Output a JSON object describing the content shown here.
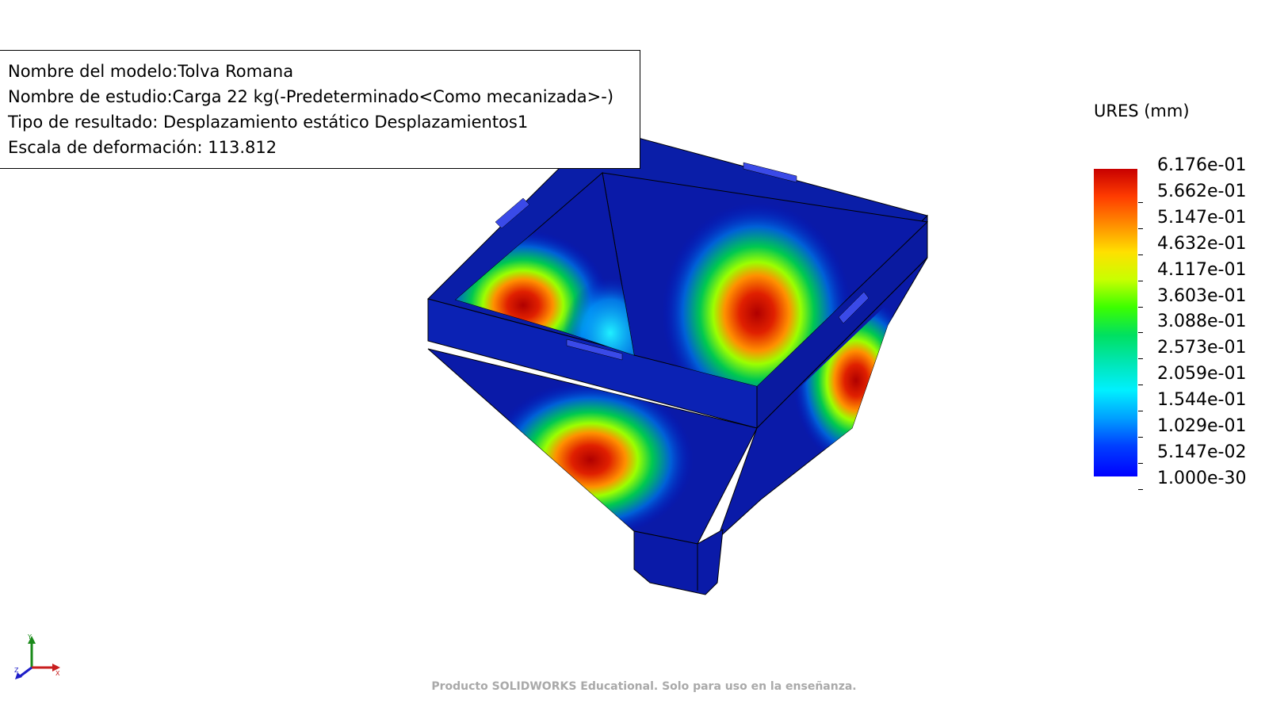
{
  "info": {
    "model_name": "Nombre del modelo:Tolva Romana",
    "study_name": "Nombre de estudio:Carga 22 kg(-Predeterminado<Como mecanizada>-)",
    "result_type": "Tipo de resultado: Desplazamiento estático Desplazamientos1",
    "deform_scale": "Escala de deformación: 113.812"
  },
  "legend": {
    "title": "URES (mm)",
    "labels": [
      "6.176e-01",
      "5.662e-01",
      "5.147e-01",
      "4.632e-01",
      "4.117e-01",
      "3.603e-01",
      "3.088e-01",
      "2.573e-01",
      "2.059e-01",
      "1.544e-01",
      "1.029e-01",
      "5.147e-02",
      "1.000e-30"
    ],
    "colors": [
      "#c80000",
      "#ff3c00",
      "#ff8c00",
      "#ffe000",
      "#c8ff00",
      "#3cff00",
      "#00e060",
      "#00e6b4",
      "#00f0ff",
      "#00a0ff",
      "#0040ff",
      "#0000ff"
    ]
  },
  "triad": {
    "x_label": "X",
    "y_label": "Y",
    "z_label": "Z"
  },
  "watermark": "Producto SOLIDWORKS Educational. Solo para uso en la enseñanza."
}
